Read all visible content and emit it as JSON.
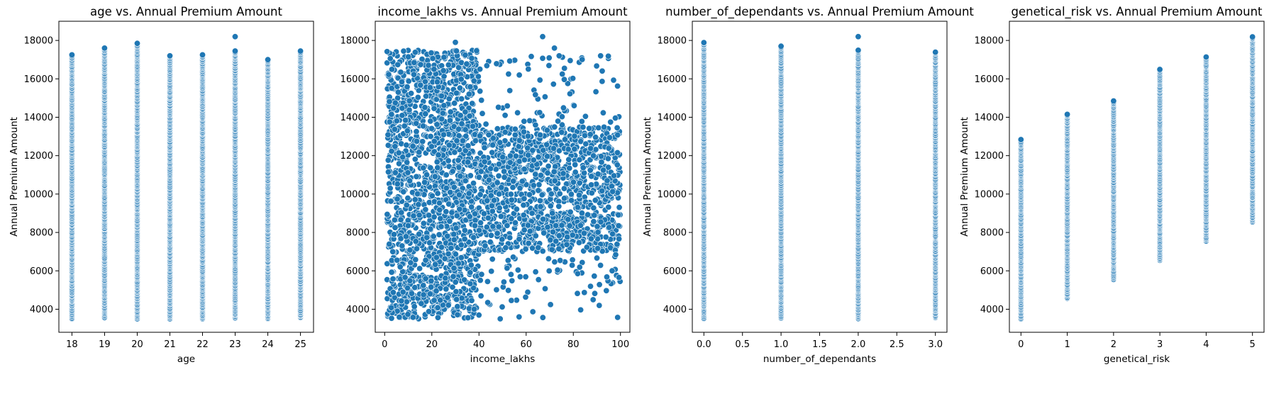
{
  "figure": {
    "marker_color": "#1f77b4",
    "marker_edge_color": "#ffffff",
    "background": "#ffffff"
  },
  "chart_data": [
    {
      "type": "scatter",
      "title": "age vs. Annual Premium Amount",
      "xlabel": "age",
      "ylabel": "Annual Premium Amount",
      "xlim": [
        17.6,
        25.4
      ],
      "ylim": [
        2800,
        19000
      ],
      "xticks": [
        18,
        19,
        20,
        21,
        22,
        23,
        24,
        25
      ],
      "xtick_labels": [
        "18",
        "19",
        "20",
        "21",
        "22",
        "23",
        "24",
        "25"
      ],
      "yticks": [
        4000,
        6000,
        8000,
        10000,
        12000,
        14000,
        16000,
        18000
      ],
      "ytick_labels": [
        "4000",
        "6000",
        "8000",
        "10000",
        "12000",
        "14000",
        "16000",
        "18000"
      ],
      "columns": [
        {
          "x": 18,
          "y_min": 3500,
          "y_max": 17250
        },
        {
          "x": 19,
          "y_min": 3550,
          "y_max": 17600
        },
        {
          "x": 20,
          "y_min": 3500,
          "y_max": 17850
        },
        {
          "x": 21,
          "y_min": 3500,
          "y_max": 17200
        },
        {
          "x": 22,
          "y_min": 3500,
          "y_max": 17250
        },
        {
          "x": 23,
          "y_min": 3550,
          "y_max": 17450,
          "extra_points": [
            18200
          ]
        },
        {
          "x": 24,
          "y_min": 3500,
          "y_max": 17000
        },
        {
          "x": 25,
          "y_min": 3550,
          "y_max": 17450
        }
      ]
    },
    {
      "type": "scatter",
      "title": "income_lakhs vs. Annual Premium Amount",
      "xlabel": "income_lakhs",
      "ylabel": "",
      "xlim": [
        -4,
        104
      ],
      "ylim": [
        2800,
        19000
      ],
      "xticks": [
        0,
        20,
        40,
        60,
        80,
        100
      ],
      "xtick_labels": [
        "0",
        "20",
        "40",
        "60",
        "80",
        "100"
      ],
      "yticks": [
        4000,
        6000,
        8000,
        10000,
        12000,
        14000,
        16000,
        18000
      ],
      "ytick_labels": [
        "4000",
        "6000",
        "8000",
        "10000",
        "12000",
        "14000",
        "16000",
        "18000"
      ],
      "regions": [
        {
          "x_min": 1,
          "x_max": 40,
          "y_min": 3500,
          "y_max": 17500
        },
        {
          "x_min": 40,
          "x_max": 100,
          "y_min": 7000,
          "y_max": 13500
        },
        {
          "x_min": 40,
          "x_max": 100,
          "y_min": 13500,
          "y_max": 17200,
          "sparse": true
        },
        {
          "x_min": 40,
          "x_max": 100,
          "y_min": 3500,
          "y_max": 7000,
          "sparse": true
        }
      ],
      "outliers": [
        [
          67,
          18200
        ],
        [
          30,
          17900
        ],
        [
          72,
          17600
        ],
        [
          74,
          17200
        ],
        [
          49,
          3500
        ],
        [
          57,
          3600
        ],
        [
          91,
          4200
        ]
      ]
    },
    {
      "type": "scatter",
      "title": "number_of_dependants vs. Annual Premium Amount",
      "xlabel": "number_of_dependants",
      "ylabel": "Annual Premium Amount",
      "xlim": [
        -0.15,
        3.15
      ],
      "ylim": [
        2800,
        19000
      ],
      "xticks": [
        0.0,
        0.5,
        1.0,
        1.5,
        2.0,
        2.5,
        3.0
      ],
      "xtick_labels": [
        "0.0",
        "0.5",
        "1.0",
        "1.5",
        "2.0",
        "2.5",
        "3.0"
      ],
      "yticks": [
        4000,
        6000,
        8000,
        10000,
        12000,
        14000,
        16000,
        18000
      ],
      "ytick_labels": [
        "4000",
        "6000",
        "8000",
        "10000",
        "12000",
        "14000",
        "16000",
        "18000"
      ],
      "columns": [
        {
          "x": 0,
          "y_min": 3500,
          "y_max": 17900
        },
        {
          "x": 1,
          "y_min": 3550,
          "y_max": 17700
        },
        {
          "x": 2,
          "y_min": 3500,
          "y_max": 17500,
          "extra_points": [
            18200
          ]
        },
        {
          "x": 3,
          "y_min": 3550,
          "y_max": 17400
        }
      ]
    },
    {
      "type": "scatter",
      "title": "genetical_risk vs. Annual Premium Amount",
      "xlabel": "genetical_risk",
      "ylabel": "Annual Premium Amount",
      "xlim": [
        -0.25,
        5.25
      ],
      "ylim": [
        2800,
        19000
      ],
      "xticks": [
        0,
        1,
        2,
        3,
        4,
        5
      ],
      "xtick_labels": [
        "0",
        "1",
        "2",
        "3",
        "4",
        "5"
      ],
      "yticks": [
        4000,
        6000,
        8000,
        10000,
        12000,
        14000,
        16000,
        18000
      ],
      "ytick_labels": [
        "4000",
        "6000",
        "8000",
        "10000",
        "12000",
        "14000",
        "16000",
        "18000"
      ],
      "columns": [
        {
          "x": 0,
          "y_min": 3500,
          "y_max": 12850
        },
        {
          "x": 1,
          "y_min": 4550,
          "y_max": 14150
        },
        {
          "x": 2,
          "y_min": 5550,
          "y_max": 14850
        },
        {
          "x": 3,
          "y_min": 6550,
          "y_max": 16500
        },
        {
          "x": 4,
          "y_min": 7550,
          "y_max": 17150
        },
        {
          "x": 5,
          "y_min": 8550,
          "y_max": 18200
        }
      ]
    }
  ]
}
